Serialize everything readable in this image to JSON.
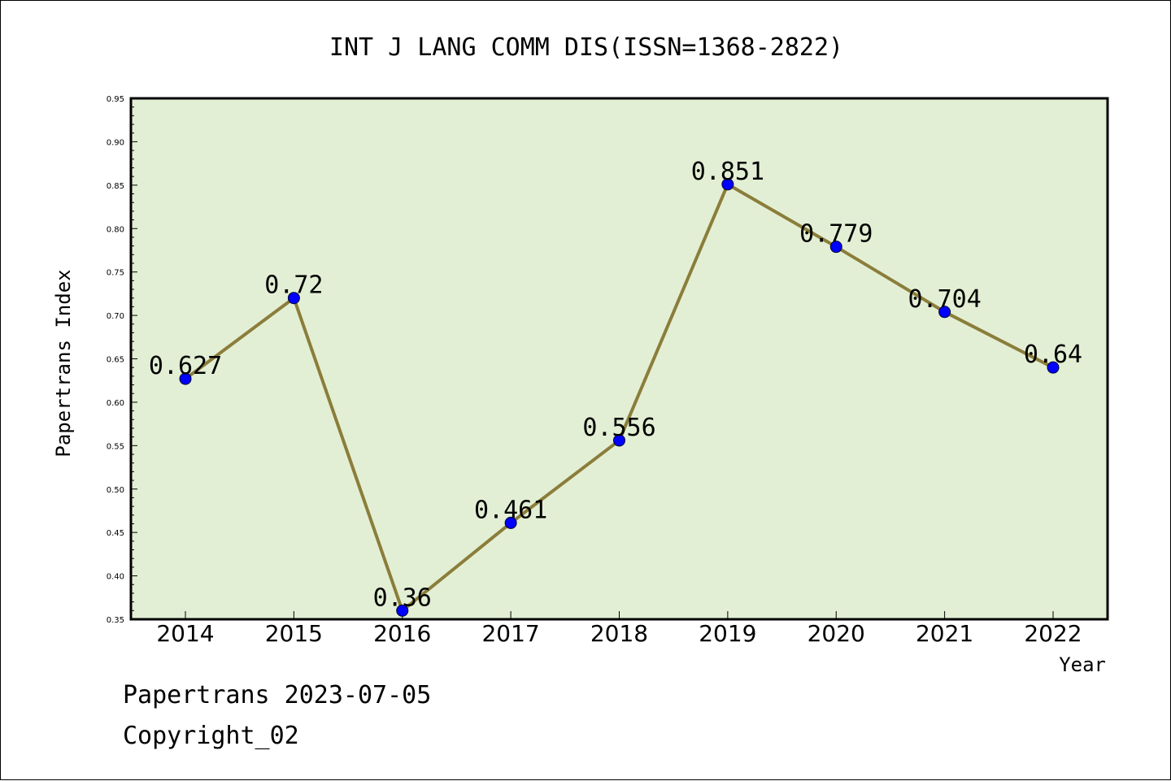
{
  "chart_data": {
    "type": "line",
    "title": "INT J LANG COMM DIS(ISSN=1368-2822)",
    "xlabel": "Year",
    "ylabel": "Papertrans Index",
    "categories": [
      "2014",
      "2015",
      "2016",
      "2017",
      "2018",
      "2019",
      "2020",
      "2021",
      "2022"
    ],
    "values": [
      0.627,
      0.72,
      0.36,
      0.461,
      0.556,
      0.851,
      0.779,
      0.704,
      0.64
    ],
    "data_labels": [
      "0.627",
      "0.72",
      "0.36",
      "0.461",
      "0.556",
      "0.851",
      "0.779",
      "0.704",
      "0.64"
    ],
    "ylim": [
      0.35,
      0.95
    ],
    "yticks": [
      "0.35",
      "0.40",
      "0.45",
      "0.50",
      "0.55",
      "0.60",
      "0.65",
      "0.70",
      "0.75",
      "0.80",
      "0.85",
      "0.90",
      "0.95"
    ],
    "grid": false,
    "colors": {
      "plot_background": "#e2efd4",
      "line": "#8b7d3a",
      "marker": "#0000ff"
    }
  },
  "footer": {
    "line1": "Papertrans 2023-07-05",
    "line2": "Copyright_02"
  }
}
